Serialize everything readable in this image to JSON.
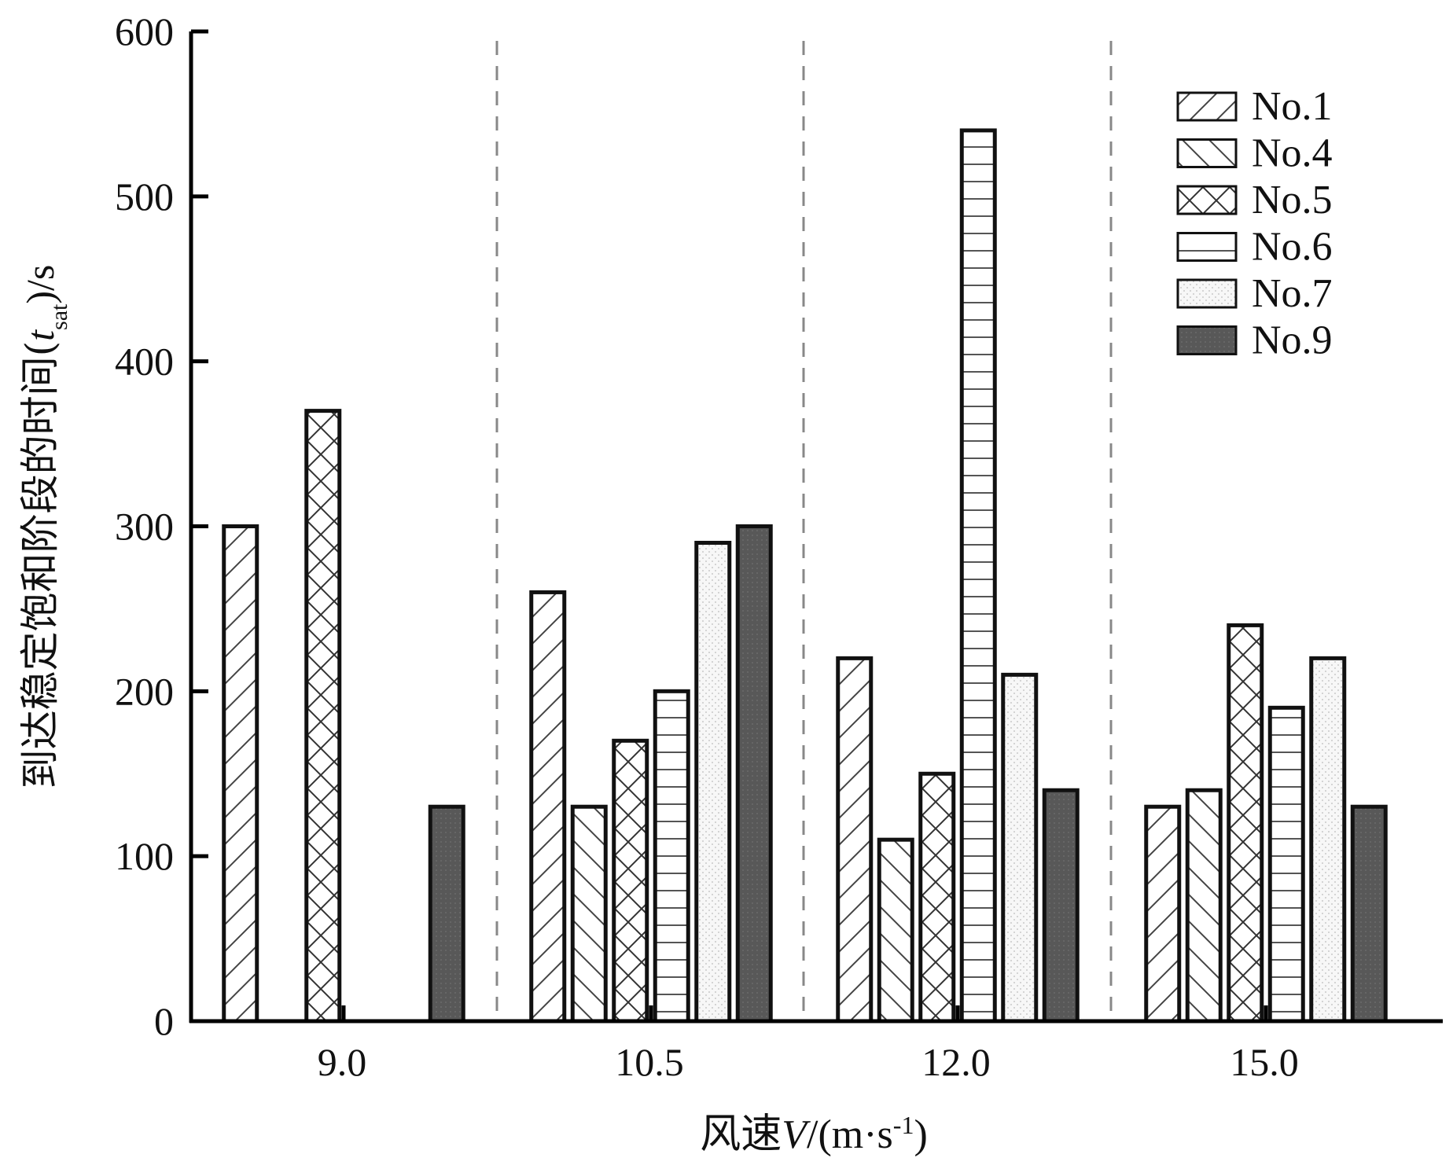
{
  "chart_data": {
    "type": "bar",
    "categories": [
      "9.0",
      "10.5",
      "12.0",
      "15.0"
    ],
    "series": [
      {
        "name": "No.1",
        "pattern": "diag-up",
        "values": [
          300,
          260,
          220,
          130
        ]
      },
      {
        "name": "No.4",
        "pattern": "diag-down",
        "values": [
          0,
          130,
          110,
          140
        ]
      },
      {
        "name": "No.5",
        "pattern": "crosshatch",
        "values": [
          370,
          170,
          150,
          240
        ]
      },
      {
        "name": "No.6",
        "pattern": "horizontal",
        "values": [
          0,
          200,
          540,
          190
        ]
      },
      {
        "name": "No.7",
        "pattern": "dots",
        "values": [
          0,
          290,
          210,
          220
        ]
      },
      {
        "name": "No.9",
        "pattern": "solid-dark",
        "values": [
          130,
          300,
          140,
          130
        ]
      }
    ],
    "ylim": [
      0,
      600
    ],
    "yticks": [
      0,
      100,
      200,
      300,
      400,
      500,
      600
    ],
    "ylabel": {
      "prefix": "到达稳定饱和阶段的时间(",
      "var": "t",
      "sub": "sat",
      "suffix": ")/s"
    },
    "xlabel": {
      "prefix": "风速",
      "var": "V",
      "mid": "/(m·s",
      "sup": "-1",
      "suffix": ")"
    },
    "legend_position": "top-right",
    "separators": "dashed vertical lines between categories",
    "colors": {
      "bar_stroke": "#111111",
      "dark_fill": "#555555",
      "light_fill": "#f4f4f4"
    }
  }
}
